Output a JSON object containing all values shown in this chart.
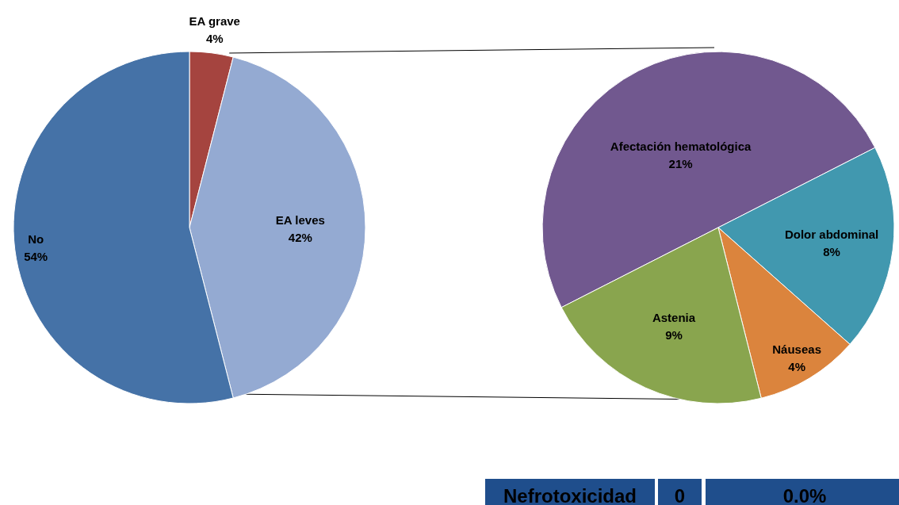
{
  "chart_data": [
    {
      "type": "pie",
      "categories": [
        "EA grave",
        "EA leves",
        "No"
      ],
      "values": [
        4,
        42,
        54
      ],
      "value_labels": [
        "4%",
        "42%",
        "54%"
      ],
      "colors": [
        "#a5443f",
        "#94aad2",
        "#4572a7"
      ]
    },
    {
      "type": "pie",
      "categories": [
        "Afectación hematológica",
        "Dolor abdominal",
        "Náuseas",
        "Astenia"
      ],
      "values": [
        21,
        8,
        4,
        9
      ],
      "value_labels": [
        "21%",
        "8%",
        "4%",
        "9%"
      ],
      "colors": [
        "#71588f",
        "#4198af",
        "#db843d",
        "#89a54e"
      ]
    },
    {
      "type": "other",
      "annotations": [
        "Nefrotoxicidad",
        "0",
        "0.0%"
      ]
    }
  ]
}
